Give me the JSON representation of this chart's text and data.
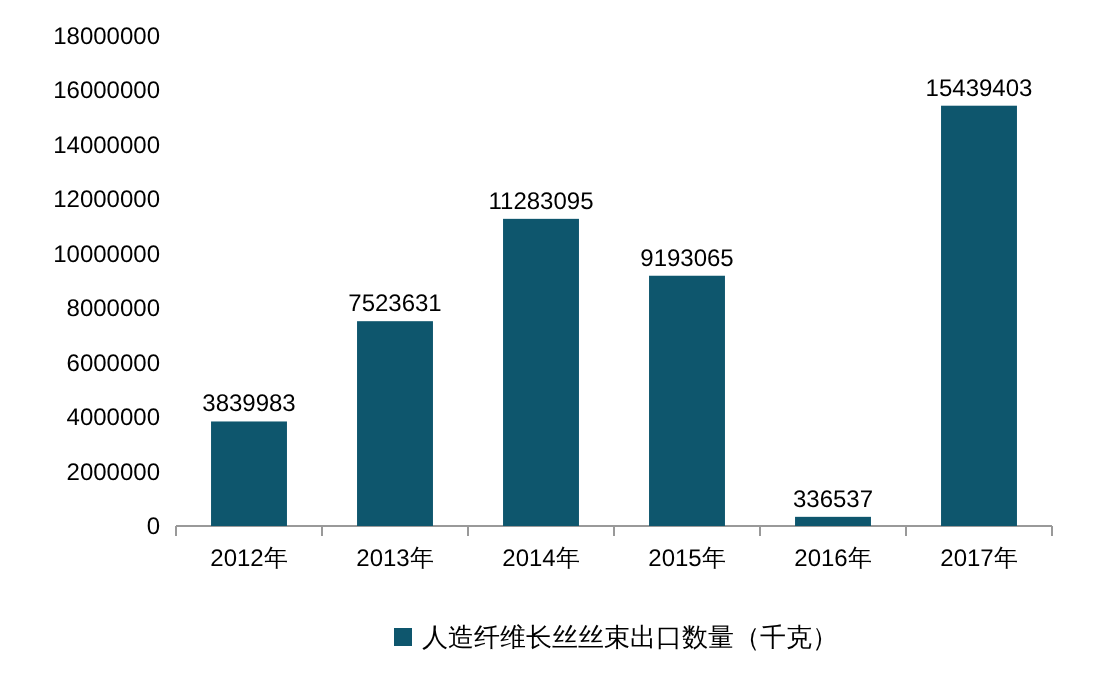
{
  "chart_data": {
    "type": "bar",
    "categories": [
      "2012年",
      "2013年",
      "2014年",
      "2015年",
      "2016年",
      "2017年"
    ],
    "series": [
      {
        "name": "人造纤维长丝丝束出口数量（千克）",
        "color": "#0e566d",
        "values": [
          3839983,
          7523631,
          11283095,
          9193065,
          336537,
          15439403
        ]
      }
    ],
    "ylim": [
      0,
      18000000
    ],
    "yticks": [
      0,
      2000000,
      4000000,
      6000000,
      8000000,
      10000000,
      12000000,
      14000000,
      16000000,
      18000000
    ],
    "data_labels": true,
    "legend": "bottom"
  }
}
